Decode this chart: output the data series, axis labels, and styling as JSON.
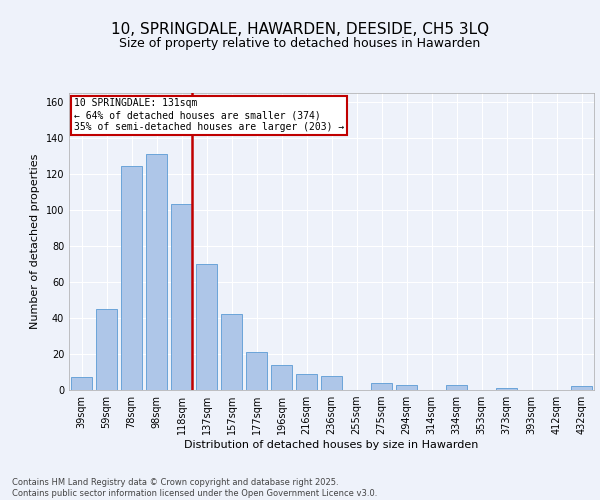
{
  "title": "10, SPRINGDALE, HAWARDEN, DEESIDE, CH5 3LQ",
  "subtitle": "Size of property relative to detached houses in Hawarden",
  "xlabel": "Distribution of detached houses by size in Hawarden",
  "ylabel": "Number of detached properties",
  "categories": [
    "39sqm",
    "59sqm",
    "78sqm",
    "98sqm",
    "118sqm",
    "137sqm",
    "157sqm",
    "177sqm",
    "196sqm",
    "216sqm",
    "236sqm",
    "255sqm",
    "275sqm",
    "294sqm",
    "314sqm",
    "334sqm",
    "353sqm",
    "373sqm",
    "393sqm",
    "412sqm",
    "432sqm"
  ],
  "values": [
    7,
    45,
    124,
    131,
    103,
    70,
    42,
    21,
    14,
    9,
    8,
    0,
    4,
    3,
    0,
    3,
    0,
    1,
    0,
    0,
    2
  ],
  "bar_color": "#aec6e8",
  "bar_edge_color": "#5b9bd5",
  "highlight_bar_index": 4,
  "highlight_color": "#c00000",
  "annotation_line1": "10 SPRINGDALE: 131sqm",
  "annotation_line2": "← 64% of detached houses are smaller (374)",
  "annotation_line3": "35% of semi-detached houses are larger (203) →",
  "annotation_box_color": "#c00000",
  "ylim": [
    0,
    165
  ],
  "yticks": [
    0,
    20,
    40,
    60,
    80,
    100,
    120,
    140,
    160
  ],
  "footer": "Contains HM Land Registry data © Crown copyright and database right 2025.\nContains public sector information licensed under the Open Government Licence v3.0.",
  "bg_color": "#eef2fa",
  "plot_bg_color": "#eef2fa",
  "grid_color": "#ffffff",
  "title_fontsize": 11,
  "subtitle_fontsize": 9,
  "axis_label_fontsize": 8,
  "tick_fontsize": 7,
  "footer_fontsize": 6
}
